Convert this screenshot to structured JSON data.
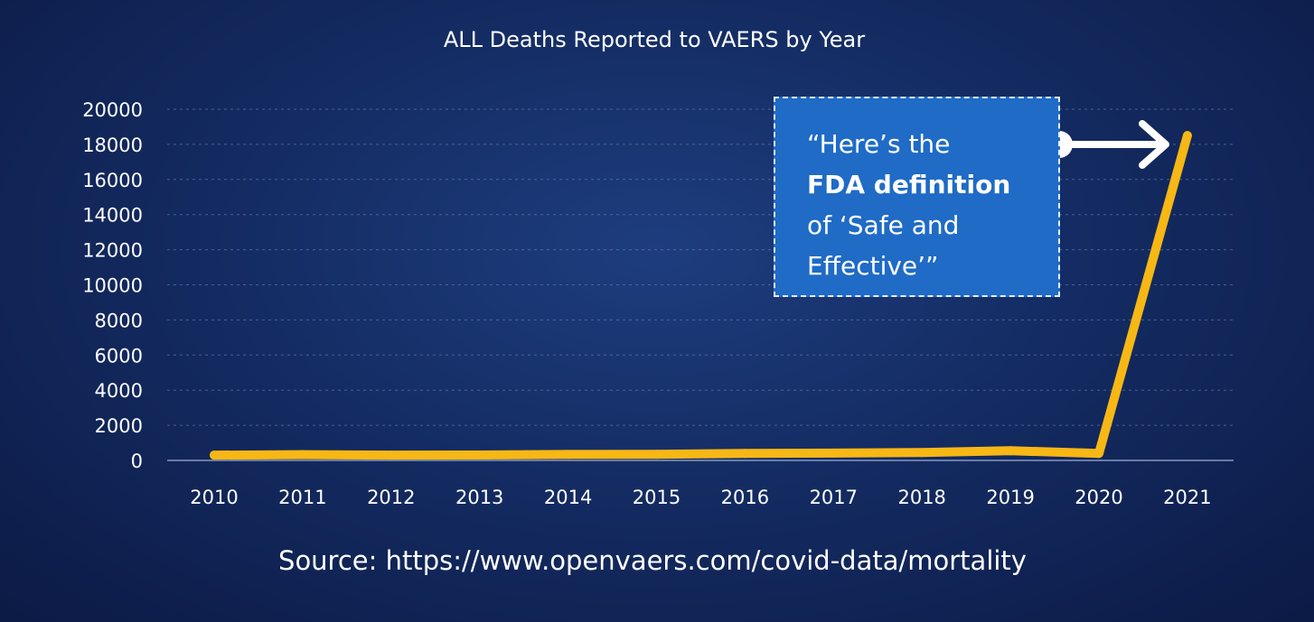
{
  "chart_data": {
    "type": "line",
    "title": "ALL Deaths Reported to VAERS by Year",
    "categories": [
      "2010",
      "2011",
      "2012",
      "2013",
      "2014",
      "2015",
      "2016",
      "2017",
      "2018",
      "2019",
      "2020",
      "2021"
    ],
    "series": [
      {
        "values": [
          300,
          330,
          300,
          310,
          340,
          350,
          400,
          420,
          450,
          550,
          400,
          18500
        ],
        "color": "#f7b715"
      }
    ],
    "yticks": [
      "0",
      "2000",
      "4000",
      "6000",
      "8000",
      "10000",
      "12000",
      "14000",
      "16000",
      "18000",
      "20000"
    ],
    "ylim": [
      0,
      20000
    ],
    "grid": true,
    "source": "Source: https://www.openvaers.com/covid-data/mortality"
  },
  "callout": {
    "line1": "“Here’s the",
    "line2": "FDA definition",
    "line3": "of ‘Safe and",
    "line4": "Effective’”"
  },
  "colors": {
    "background": "#142c63",
    "line": "#f7b715",
    "callout_bg": "#1f6bc6",
    "grid": "#6f83b5"
  }
}
